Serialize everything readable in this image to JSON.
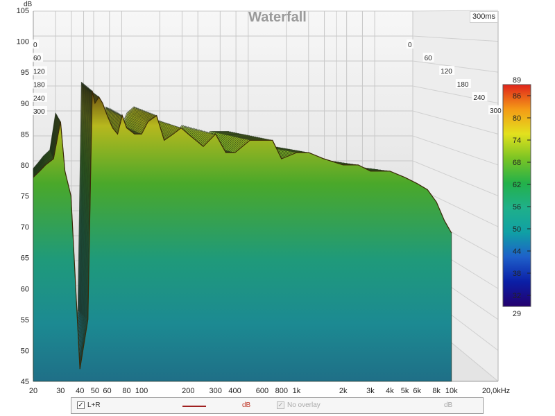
{
  "chart_data": {
    "type": "waterfall",
    "title": "Waterfall",
    "time_window_label": "300ms",
    "y_axis": {
      "unit_label": "dB",
      "ylim": [
        45,
        105
      ],
      "ticks": [
        45,
        50,
        55,
        60,
        65,
        70,
        75,
        80,
        85,
        90,
        95,
        100,
        105
      ]
    },
    "x_axis": {
      "scale": "log",
      "xlim": [
        20,
        20000
      ],
      "tick_values": [
        20,
        30,
        40,
        50,
        60,
        80,
        100,
        200,
        300,
        400,
        600,
        800,
        1000,
        2000,
        3000,
        4000,
        5000,
        6000,
        8000,
        10000,
        20000
      ],
      "tick_labels": [
        "20",
        "30",
        "40",
        "50",
        "60",
        "80",
        "100",
        "200",
        "300",
        "400",
        "600",
        "800",
        "1k",
        "2k",
        "3k",
        "4k",
        "5k",
        "6k",
        "8k",
        "10k",
        "20,0kHz"
      ]
    },
    "time_axis": {
      "unit": "ms",
      "ticks": [
        0,
        60,
        120,
        180,
        240,
        300
      ]
    },
    "colorbar": {
      "min_label": "29",
      "max_label": "89",
      "ticks": [
        32,
        38,
        44,
        50,
        56,
        62,
        68,
        74,
        80,
        86
      ],
      "range": [
        29,
        89
      ]
    },
    "series": [
      {
        "name": "L+R",
        "front_slice_x": [
          20,
          22,
          24,
          27,
          30,
          32,
          35,
          40,
          45,
          48,
          50,
          53,
          56,
          60,
          65,
          70,
          75,
          80,
          90,
          100,
          110,
          125,
          140,
          160,
          180,
          200,
          250,
          300,
          350,
          400,
          500,
          600,
          700,
          800,
          1000,
          1200,
          1500,
          2000,
          2500,
          3000,
          4000,
          5000,
          6000,
          7000,
          8000,
          9000,
          10000
        ],
        "front_slice_y": [
          78,
          79,
          80,
          81,
          87,
          79,
          75,
          47,
          55,
          92,
          90,
          91,
          90,
          88,
          86,
          85,
          88,
          86,
          85,
          85,
          87,
          88,
          84,
          85,
          86,
          85,
          83,
          85,
          82,
          82,
          84,
          84,
          84,
          81,
          82,
          82,
          81,
          80,
          80,
          79,
          79,
          78,
          77,
          76,
          74,
          71,
          69
        ]
      }
    ],
    "grid": true
  },
  "legend": {
    "series_label": "L+R",
    "series_unit": "dB",
    "overlay_label": "No overlay",
    "overlay_unit": "dB",
    "check_mark": "✓"
  },
  "colors": {
    "series_line": "#a02020",
    "grid": "#c8c8c8",
    "wall_light": "#f7f7f7",
    "wall_dark": "#d9d9d9"
  }
}
